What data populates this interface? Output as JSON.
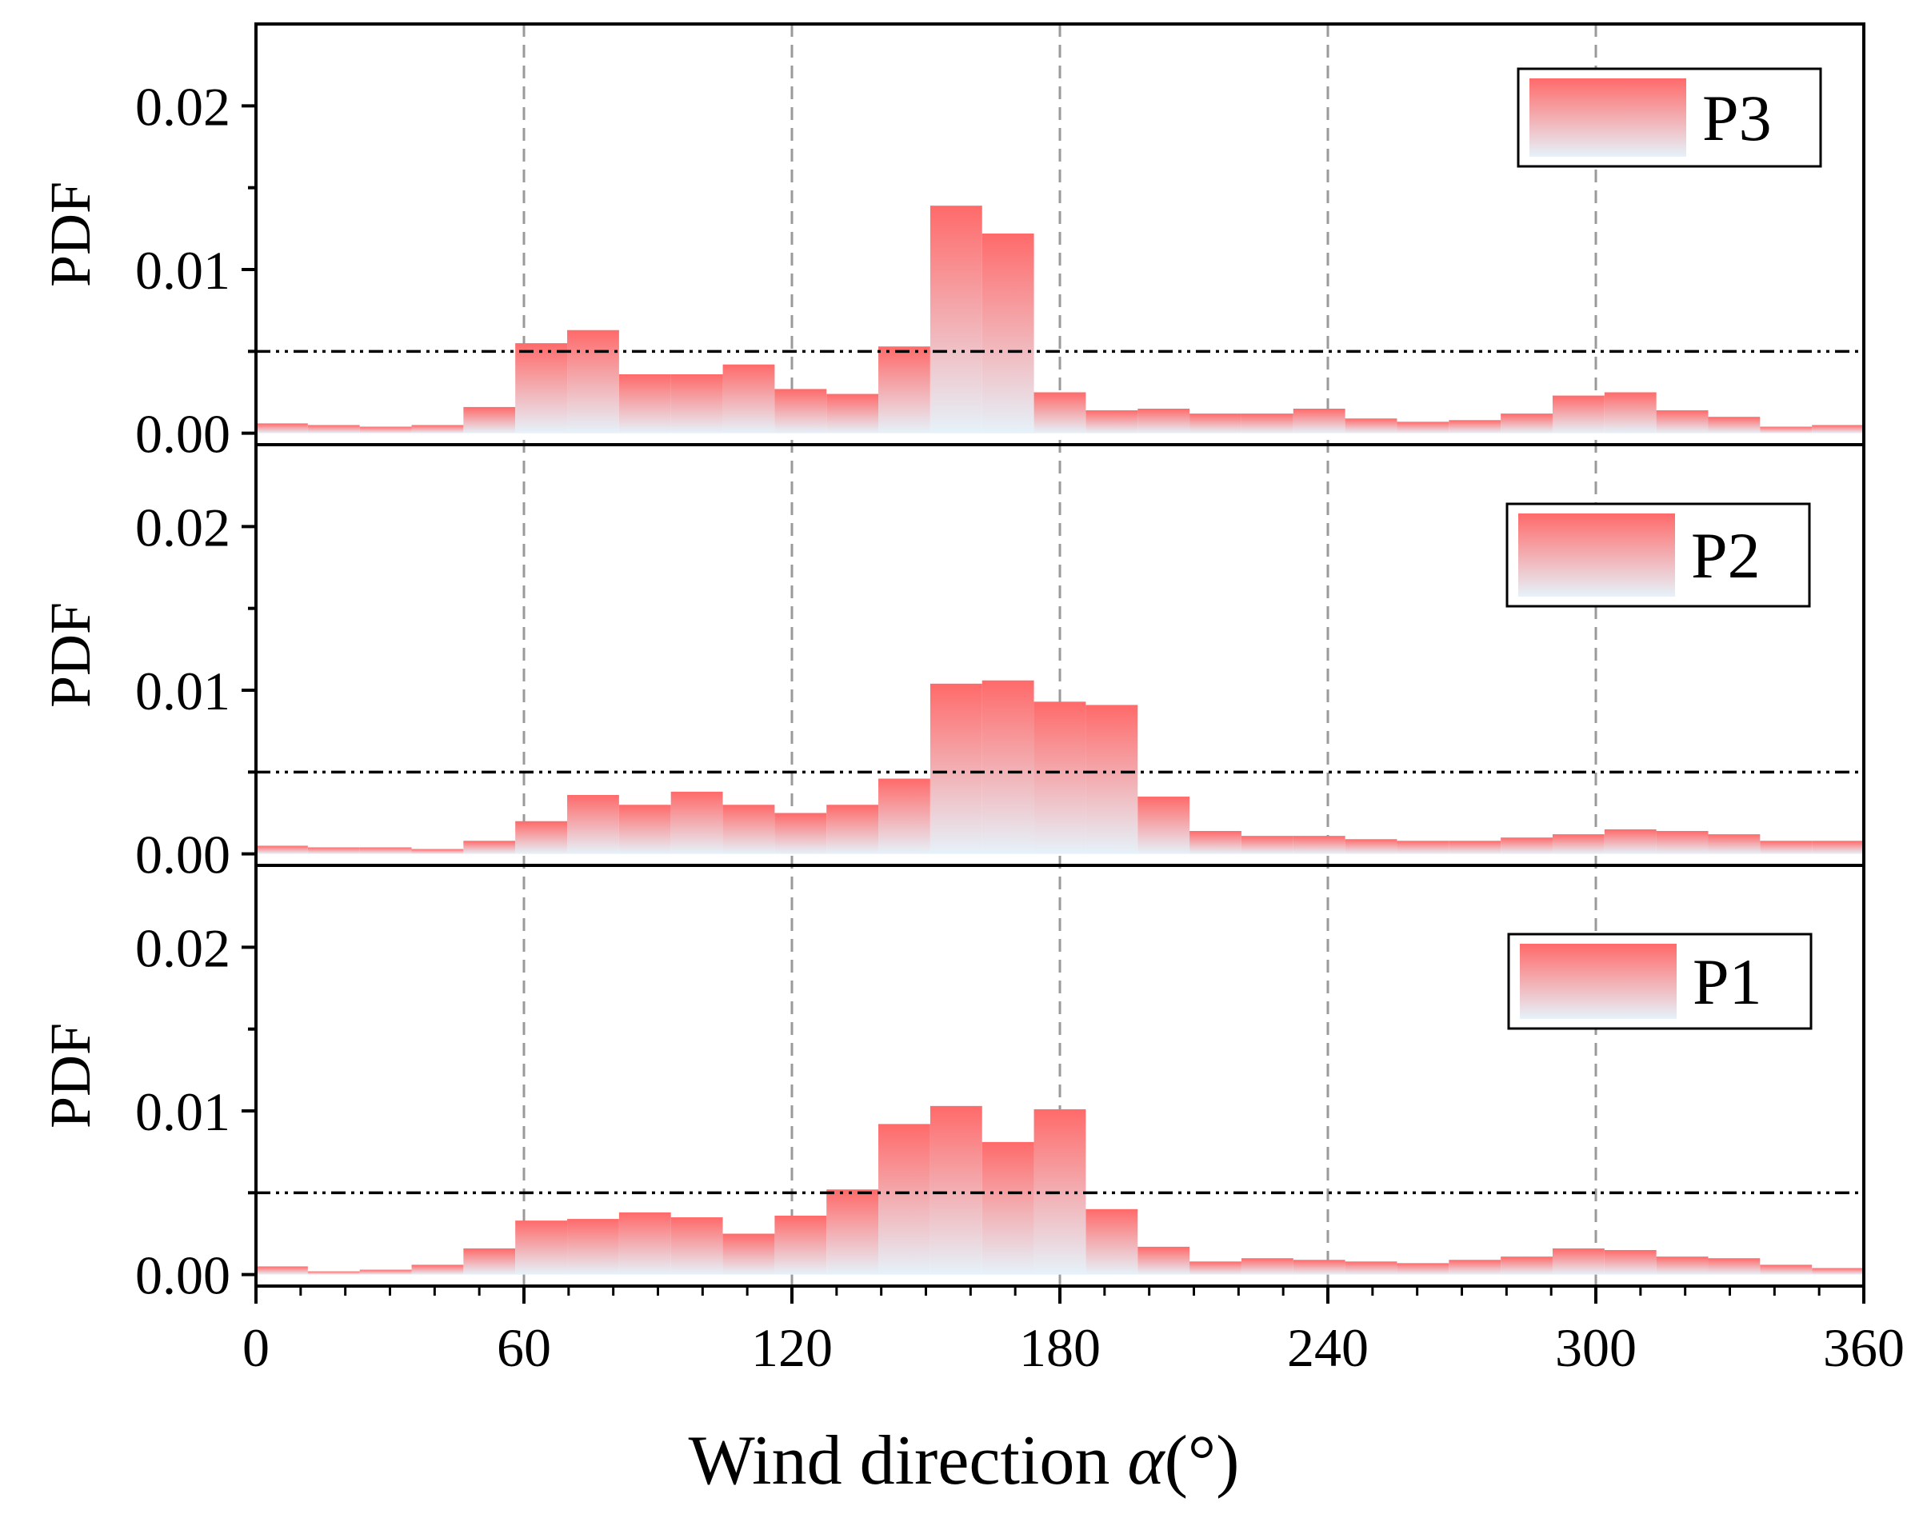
{
  "chart_data": {
    "type": "bar",
    "xlabel_text": "Wind direction ",
    "xlabel_symbol": "α",
    "xlabel_unit": "(°)",
    "xlim": [
      0,
      360
    ],
    "x_ticks": [
      "0",
      "60",
      "120",
      "180",
      "240",
      "300",
      "360"
    ],
    "x_tick_values": [
      0,
      60,
      120,
      180,
      240,
      300,
      360
    ],
    "bin_width": 11.6129,
    "bin_starts": [
      0,
      11.61,
      23.23,
      34.84,
      46.45,
      58.06,
      69.68,
      81.29,
      92.9,
      104.52,
      116.13,
      127.74,
      139.35,
      150.97,
      162.58,
      174.19,
      185.81,
      197.42,
      209.03,
      220.65,
      232.26,
      243.87,
      255.48,
      267.1,
      278.71,
      290.32,
      301.94,
      313.55,
      325.16,
      336.77,
      348.39
    ],
    "ylabel": "PDF",
    "ylim": [
      -0.0007,
      0.025
    ],
    "y_ticks": [
      "0.00",
      "0.01",
      "0.02"
    ],
    "y_tick_values": [
      0.0,
      0.01,
      0.02
    ],
    "reference_line": 0.005,
    "panels": [
      {
        "name": "P3",
        "values": [
          0.0006,
          0.0005,
          0.0004,
          0.0005,
          0.0016,
          0.0055,
          0.0063,
          0.0036,
          0.0036,
          0.0042,
          0.0027,
          0.0024,
          0.0053,
          0.0139,
          0.0122,
          0.0025,
          0.0014,
          0.0015,
          0.0012,
          0.0012,
          0.0015,
          0.0009,
          0.0007,
          0.0008,
          0.0012,
          0.0023,
          0.0025,
          0.0014,
          0.001,
          0.0004,
          0.0005
        ]
      },
      {
        "name": "P2",
        "values": [
          0.0005,
          0.0004,
          0.0004,
          0.0003,
          0.0008,
          0.002,
          0.0036,
          0.003,
          0.0038,
          0.003,
          0.0025,
          0.003,
          0.0046,
          0.0104,
          0.0106,
          0.0093,
          0.0091,
          0.0035,
          0.0014,
          0.0011,
          0.0011,
          0.0009,
          0.0008,
          0.0008,
          0.001,
          0.0012,
          0.0015,
          0.0014,
          0.0012,
          0.0008,
          0.0008
        ]
      },
      {
        "name": "P1",
        "values": [
          0.0005,
          0.0002,
          0.0003,
          0.0006,
          0.0016,
          0.0033,
          0.0034,
          0.0038,
          0.0035,
          0.0025,
          0.0036,
          0.0052,
          0.0092,
          0.0103,
          0.0081,
          0.0101,
          0.004,
          0.0017,
          0.0008,
          0.001,
          0.0009,
          0.0008,
          0.0007,
          0.0009,
          0.0011,
          0.0016,
          0.0015,
          0.0011,
          0.001,
          0.0006,
          0.0004
        ]
      }
    ]
  },
  "colors": {
    "bar_top": "#ff6a6a",
    "bar_bottom": "#e6f2fa",
    "grid": "#9a9a9a",
    "axis": "#000000",
    "reference": "#000000"
  }
}
